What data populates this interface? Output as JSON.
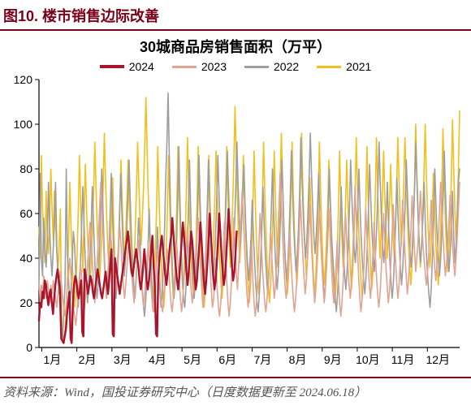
{
  "figure_label": "图10. 楼市销售边际改善",
  "chart": {
    "type": "line",
    "title": "30城商品房销售面积（万平）",
    "title_fontsize": 18,
    "background_color": "#ffffff",
    "x_axis": {
      "categories": [
        "1月",
        "2月",
        "3月",
        "4月",
        "5月",
        "6月",
        "7月",
        "8月",
        "9月",
        "10月",
        "11月",
        "12月"
      ],
      "tick_fontsize": 14,
      "tick_color": "#000000"
    },
    "y_axis": {
      "min": 0,
      "max": 120,
      "tick_step": 20,
      "tick_fontsize": 14,
      "tick_color": "#000000"
    },
    "axis_line_color": "#000000",
    "grid": false,
    "series": [
      {
        "name": "2024",
        "color": "#a8142b",
        "line_width": 2.4,
        "data_ends_at_month": "6月",
        "values": [
          12,
          20,
          18,
          25,
          22,
          30,
          28,
          23,
          19,
          24,
          26,
          20,
          15,
          22,
          28,
          32,
          35,
          30,
          25,
          4,
          3,
          2,
          5,
          8,
          15,
          20,
          25,
          4,
          2,
          20,
          28,
          32,
          30,
          25,
          22,
          26,
          30,
          7,
          5,
          35,
          32,
          28,
          24,
          28,
          32,
          30,
          25,
          22,
          26,
          30,
          35,
          32,
          28,
          24,
          22,
          26,
          30,
          34,
          28,
          24,
          30,
          38,
          44,
          6,
          5,
          40,
          36,
          32,
          28,
          24,
          28,
          32,
          36,
          40,
          44,
          48,
          52,
          46,
          40,
          34,
          32,
          36,
          40,
          44,
          40,
          36,
          30,
          26,
          30,
          36,
          44,
          38,
          30,
          26,
          30,
          36,
          44,
          50,
          36,
          28,
          6,
          5,
          32,
          40,
          46,
          50,
          44,
          38,
          32,
          28,
          34,
          40,
          46,
          50,
          58,
          50,
          42,
          36,
          30,
          26,
          32,
          40,
          48,
          56,
          50,
          42,
          34,
          28,
          34,
          42,
          52,
          48,
          40,
          32,
          26,
          30,
          38,
          46,
          56,
          48,
          38,
          30,
          24,
          30,
          38,
          48,
          60,
          50,
          40,
          32,
          26,
          30,
          38,
          48,
          60,
          52,
          42,
          34,
          28,
          32,
          40,
          50,
          62,
          54,
          44,
          36,
          30,
          34,
          42,
          52
        ]
      },
      {
        "name": "2023",
        "color": "#e2a393",
        "line_width": 1.6,
        "values": [
          30,
          20,
          28,
          24,
          32,
          26,
          22,
          30,
          26,
          20,
          28,
          24,
          30,
          26,
          22,
          18,
          24,
          30,
          34,
          28,
          22,
          18,
          14,
          20,
          28,
          34,
          40,
          32,
          24,
          18,
          14,
          10,
          16,
          24,
          32,
          38,
          30,
          22,
          16,
          22,
          30,
          38,
          48,
          56,
          48,
          38,
          28,
          20,
          28,
          38,
          50,
          62,
          74,
          62,
          50,
          38,
          28,
          22,
          30,
          40,
          52,
          46,
          38,
          30,
          24,
          30,
          38,
          46,
          54,
          46,
          36,
          28,
          22,
          28,
          36,
          44,
          50,
          42,
          34,
          26,
          20,
          26,
          34,
          42,
          48,
          40,
          32,
          24,
          18,
          24,
          32,
          40,
          46,
          38,
          30,
          22,
          16,
          22,
          30,
          38,
          44,
          36,
          28,
          20,
          16,
          22,
          30,
          38,
          44,
          36,
          28,
          20,
          16,
          22,
          30,
          38,
          46,
          38,
          30,
          22,
          16,
          22,
          30,
          38,
          46,
          54,
          44,
          34,
          26,
          20,
          26,
          34,
          42,
          50,
          58,
          48,
          36,
          26,
          18,
          24,
          34,
          46,
          60,
          48,
          36,
          26,
          18,
          22,
          30,
          40,
          26,
          18,
          14,
          20,
          30,
          42,
          56,
          42,
          30,
          20,
          14,
          20,
          30,
          42,
          58,
          46,
          34,
          26,
          36,
          46,
          58,
          70,
          58,
          46,
          34,
          24,
          18,
          24,
          34,
          46,
          30,
          20,
          14,
          20,
          30,
          44,
          60,
          48,
          36,
          28,
          20,
          16,
          22,
          30,
          40,
          52,
          40,
          30,
          22,
          28,
          38,
          50,
          64,
          78,
          64,
          50,
          38,
          28,
          22,
          30,
          40,
          52,
          40,
          30,
          22,
          16,
          22,
          30,
          40,
          52,
          66,
          54,
          42,
          32,
          24,
          30,
          40,
          52,
          64,
          50,
          38,
          28,
          20,
          26,
          36,
          48,
          62,
          50,
          38,
          28,
          20,
          26,
          36,
          48,
          62,
          50,
          38,
          28,
          20,
          26,
          36,
          48,
          30,
          20,
          14,
          20,
          30,
          44,
          60,
          48,
          36,
          28,
          22,
          30,
          42,
          56,
          72,
          58,
          44,
          32,
          22,
          16,
          22,
          32,
          46,
          62,
          50,
          38,
          28,
          22,
          30,
          42,
          56,
          42,
          32,
          24,
          18,
          24,
          34,
          46,
          60,
          48,
          36,
          28,
          20,
          26,
          36,
          48,
          64,
          52,
          40,
          30,
          22,
          28,
          38,
          50,
          66,
          54,
          42,
          32,
          24,
          30,
          40,
          52,
          68,
          56,
          44,
          34,
          40,
          48,
          58,
          70,
          58,
          48,
          40,
          34,
          28,
          34,
          42,
          52,
          66,
          54,
          44,
          36,
          30,
          38,
          48,
          60,
          74,
          62,
          50,
          40,
          32,
          38,
          46,
          56,
          68,
          56,
          46,
          38,
          32,
          40,
          50,
          62,
          74
        ]
      },
      {
        "name": "2022",
        "color": "#9e9e9e",
        "line_width": 1.6,
        "values": [
          26,
          78,
          40,
          32,
          58,
          44,
          36,
          48,
          74,
          54,
          40,
          32,
          44,
          56,
          74,
          46,
          32,
          24,
          30,
          10,
          4,
          16,
          28,
          80,
          42,
          30,
          20,
          26,
          38,
          52,
          46,
          34,
          24,
          18,
          26,
          38,
          54,
          72,
          56,
          40,
          28,
          20,
          28,
          40,
          54,
          72,
          56,
          40,
          28,
          22,
          30,
          42,
          60,
          80,
          62,
          44,
          30,
          22,
          30,
          42,
          58,
          78,
          60,
          44,
          30,
          22,
          30,
          42,
          58,
          78,
          60,
          44,
          32,
          40,
          52,
          66,
          84,
          66,
          50,
          38,
          28,
          22,
          30,
          42,
          58,
          50,
          38,
          28,
          20,
          14,
          20,
          30,
          44,
          62,
          46,
          32,
          22,
          16,
          24,
          36,
          54,
          38,
          26,
          18,
          24,
          36,
          54,
          76,
          92,
          114,
          86,
          62,
          44,
          30,
          22,
          30,
          44,
          64,
          90,
          66,
          46,
          32,
          22,
          18,
          26,
          40,
          60,
          84,
          62,
          44,
          30,
          22,
          30,
          44,
          62,
          86,
          66,
          48,
          34,
          26,
          34,
          46,
          62,
          84,
          66,
          50,
          38,
          30,
          38,
          50,
          66,
          86,
          68,
          52,
          40,
          32,
          40,
          52,
          68,
          88,
          70,
          54,
          42,
          34,
          42,
          54,
          70,
          92,
          74,
          58,
          46,
          56,
          68,
          82,
          62,
          48,
          38,
          30,
          38,
          50,
          66,
          50,
          38,
          28,
          20,
          16,
          24,
          36,
          52,
          72,
          56,
          42,
          32,
          24,
          32,
          44,
          60,
          80,
          62,
          46,
          34,
          26,
          34,
          46,
          62,
          84,
          66,
          50,
          38,
          30,
          38,
          50,
          66,
          88,
          70,
          54,
          42,
          34,
          42,
          54,
          70,
          94,
          76,
          60,
          48,
          40,
          48,
          60,
          76,
          96,
          78,
          62,
          50,
          42,
          50,
          62,
          78,
          60,
          46,
          36,
          28,
          22,
          30,
          42,
          58,
          80,
          64,
          50,
          40,
          32,
          22,
          16,
          24,
          36,
          52,
          72,
          56,
          42,
          32,
          26,
          34,
          46,
          62,
          84,
          68,
          54,
          44,
          38,
          48,
          62,
          80,
          62,
          48,
          38,
          30,
          24,
          32,
          44,
          60,
          82,
          66,
          52,
          42,
          34,
          42,
          54,
          70,
          92,
          74,
          58,
          46,
          38,
          46,
          58,
          74,
          54,
          40,
          30,
          22,
          28,
          40,
          56,
          76,
          60,
          46,
          36,
          28,
          36,
          48,
          64,
          84,
          68,
          54,
          44,
          36,
          44,
          56,
          72,
          92,
          74,
          58,
          46,
          38,
          46,
          58,
          74,
          56,
          42,
          32,
          24,
          18,
          26,
          40,
          58,
          80,
          64,
          50,
          40,
          32,
          40,
          52,
          68,
          88,
          70,
          54,
          42,
          34,
          42,
          54,
          70,
          50,
          38,
          46,
          58,
          74,
          80
        ]
      },
      {
        "name": "2021",
        "color": "#f2c01e",
        "line_width": 1.6,
        "values": [
          54,
          40,
          86,
          62,
          48,
          38,
          70,
          52,
          42,
          58,
          80,
          62,
          48,
          70,
          54,
          42,
          34,
          46,
          62,
          14,
          6,
          2,
          8,
          18,
          32,
          50,
          74,
          54,
          38,
          26,
          18,
          26,
          40,
          60,
          86,
          66,
          48,
          34,
          60,
          82,
          64,
          48,
          36,
          28,
          38,
          52,
          70,
          92,
          72,
          54,
          40,
          30,
          40,
          54,
          72,
          96,
          76,
          58,
          44,
          34,
          44,
          58,
          76,
          52,
          38,
          28,
          36,
          48,
          64,
          84,
          66,
          50,
          38,
          50,
          66,
          84,
          64,
          48,
          36,
          28,
          38,
          52,
          70,
          92,
          74,
          58,
          46,
          58,
          72,
          90,
          112,
          88,
          68,
          52,
          40,
          30,
          22,
          30,
          44,
          64,
          90,
          68,
          50,
          36,
          26,
          18,
          26,
          40,
          60,
          86,
          64,
          46,
          32,
          22,
          30,
          44,
          64,
          90,
          68,
          50,
          36,
          26,
          34,
          48,
          68,
          94,
          72,
          54,
          40,
          30,
          22,
          30,
          44,
          64,
          90,
          68,
          50,
          36,
          26,
          18,
          26,
          40,
          60,
          86,
          64,
          46,
          34,
          50,
          68,
          88,
          68,
          52,
          40,
          30,
          22,
          30,
          44,
          64,
          90,
          68,
          50,
          36,
          48,
          64,
          84,
          108,
          86,
          66,
          50,
          38,
          50,
          66,
          86,
          66,
          50,
          38,
          28,
          20,
          28,
          42,
          62,
          88,
          66,
          48,
          34,
          24,
          32,
          46,
          66,
          92,
          70,
          52,
          38,
          28,
          20,
          28,
          42,
          62,
          88,
          66,
          48,
          36,
          54,
          74,
          96,
          74,
          56,
          42,
          32,
          24,
          32,
          46,
          66,
          92,
          70,
          52,
          38,
          28,
          38,
          52,
          72,
          96,
          74,
          56,
          42,
          32,
          42,
          56,
          76,
          58,
          44,
          32,
          24,
          32,
          46,
          66,
          92,
          70,
          52,
          38,
          28,
          36,
          48,
          64,
          84,
          66,
          50,
          38,
          28,
          20,
          28,
          42,
          62,
          88,
          66,
          48,
          36,
          48,
          64,
          84,
          64,
          48,
          36,
          26,
          34,
          48,
          68,
          94,
          72,
          54,
          40,
          30,
          22,
          30,
          44,
          64,
          90,
          68,
          50,
          36,
          26,
          34,
          48,
          68,
          94,
          72,
          54,
          40,
          52,
          68,
          88,
          68,
          52,
          40,
          50,
          64,
          82,
          64,
          50,
          40,
          54,
          72,
          94,
          74,
          58,
          46,
          58,
          74,
          94,
          74,
          58,
          46,
          36,
          28,
          38,
          52,
          72,
          100,
          78,
          60,
          46,
          36,
          46,
          60,
          78,
          100,
          78,
          60,
          46,
          36,
          46,
          60,
          78,
          60,
          46,
          36,
          28,
          38,
          52,
          72,
          98,
          76,
          58,
          44,
          34,
          44,
          58,
          76,
          102,
          80,
          62,
          48,
          62,
          80,
          106
        ]
      }
    ],
    "legend": {
      "position": "top",
      "fontsize": 14,
      "swatch_width": 30,
      "swatch_height": 3
    },
    "header_rule_color": "#7a0019"
  },
  "source_text": "资料来源：Wind，国投证券研究中心（日度数据更新至 2024.06.18）",
  "source_fontsize": 15,
  "source_color": "#555555"
}
